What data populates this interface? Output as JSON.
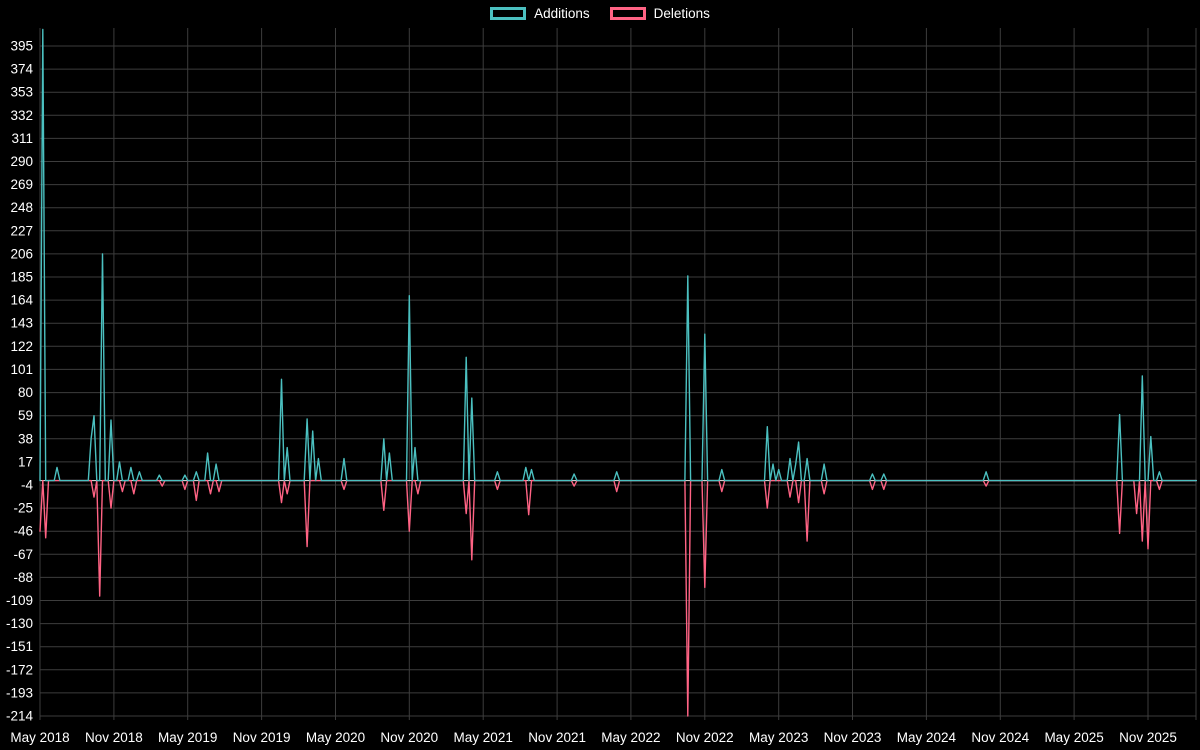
{
  "legend": {
    "items": [
      {
        "label": "Additions",
        "color": "#4bc0c0"
      },
      {
        "label": "Deletions",
        "color": "#ff6384"
      }
    ]
  },
  "chart_data": {
    "type": "line",
    "title": "",
    "legend_position": "top",
    "x_unit": "week",
    "x_tick_labels": [
      "May 2018",
      "Nov 2018",
      "May 2019",
      "Nov 2019",
      "May 2020",
      "Nov 2020",
      "May 2021",
      "Nov 2021",
      "May 2022",
      "Nov 2022",
      "May 2023",
      "Nov 2023",
      "May 2024",
      "Nov 2024",
      "May 2025",
      "Nov 2025"
    ],
    "x_ticks_every_weeks": 26,
    "total_weeks": 407,
    "y_ticks": [
      395,
      374,
      353,
      332,
      311,
      290,
      269,
      248,
      227,
      206,
      185,
      164,
      143,
      122,
      101,
      80,
      59,
      38,
      17,
      -4,
      -25,
      -46,
      -67,
      -88,
      -109,
      -130,
      -151,
      -172,
      -193,
      -214
    ],
    "ylim": [
      -216,
      411
    ],
    "grid": true,
    "colors": {
      "background": "#000000",
      "grid": "#3d3d3d",
      "text": "#ffffff",
      "zero_line": "#e8e8e8"
    },
    "series": [
      {
        "name": "Additions",
        "color": "#4bc0c0",
        "baseline": 0,
        "spikes": [
          [
            1,
            410
          ],
          [
            6,
            12
          ],
          [
            18,
            38
          ],
          [
            19,
            59
          ],
          [
            22,
            206
          ],
          [
            25,
            55
          ],
          [
            28,
            17
          ],
          [
            32,
            12
          ],
          [
            35,
            8
          ],
          [
            42,
            5
          ],
          [
            51,
            5
          ],
          [
            55,
            8
          ],
          [
            59,
            25
          ],
          [
            62,
            15
          ],
          [
            85,
            92
          ],
          [
            87,
            30
          ],
          [
            94,
            56
          ],
          [
            96,
            45
          ],
          [
            98,
            20
          ],
          [
            107,
            20
          ],
          [
            121,
            38
          ],
          [
            123,
            25
          ],
          [
            130,
            168
          ],
          [
            132,
            30
          ],
          [
            150,
            112
          ],
          [
            152,
            75
          ],
          [
            161,
            8
          ],
          [
            171,
            12
          ],
          [
            173,
            10
          ],
          [
            188,
            6
          ],
          [
            203,
            8
          ],
          [
            228,
            186
          ],
          [
            234,
            133
          ],
          [
            240,
            10
          ],
          [
            256,
            49
          ],
          [
            258,
            15
          ],
          [
            260,
            10
          ],
          [
            264,
            20
          ],
          [
            266,
            15
          ],
          [
            267,
            35
          ],
          [
            270,
            20
          ],
          [
            276,
            15
          ],
          [
            293,
            6
          ],
          [
            297,
            6
          ],
          [
            333,
            8
          ],
          [
            380,
            60
          ],
          [
            388,
            95
          ],
          [
            391,
            40
          ],
          [
            394,
            8
          ]
        ]
      },
      {
        "name": "Deletions",
        "color": "#ff6384",
        "baseline": 0,
        "spikes": [
          [
            0,
            -46
          ],
          [
            2,
            -52
          ],
          [
            19,
            -15
          ],
          [
            21,
            -105
          ],
          [
            25,
            -25
          ],
          [
            29,
            -10
          ],
          [
            33,
            -12
          ],
          [
            43,
            -5
          ],
          [
            51,
            -8
          ],
          [
            55,
            -18
          ],
          [
            60,
            -12
          ],
          [
            63,
            -10
          ],
          [
            85,
            -20
          ],
          [
            87,
            -12
          ],
          [
            94,
            -60
          ],
          [
            107,
            -8
          ],
          [
            121,
            -27
          ],
          [
            130,
            -46
          ],
          [
            133,
            -12
          ],
          [
            150,
            -30
          ],
          [
            152,
            -72
          ],
          [
            161,
            -8
          ],
          [
            172,
            -31
          ],
          [
            188,
            -5
          ],
          [
            203,
            -10
          ],
          [
            228,
            -214
          ],
          [
            234,
            -97
          ],
          [
            240,
            -10
          ],
          [
            256,
            -25
          ],
          [
            264,
            -15
          ],
          [
            267,
            -20
          ],
          [
            270,
            -55
          ],
          [
            276,
            -12
          ],
          [
            293,
            -8
          ],
          [
            297,
            -8
          ],
          [
            333,
            -5
          ],
          [
            380,
            -48
          ],
          [
            386,
            -30
          ],
          [
            388,
            -55
          ],
          [
            390,
            -62
          ],
          [
            394,
            -8
          ]
        ]
      }
    ]
  }
}
